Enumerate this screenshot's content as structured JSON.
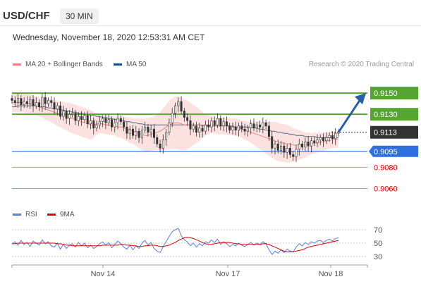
{
  "header": {
    "symbol": "USD/CHF",
    "interval": "30 MIN"
  },
  "datetime": "Wednesday, November 18, 2020 12:53:31 AM CET",
  "legend": {
    "ma20_label": "MA 20 + Bollinger Bands",
    "ma50_label": "MA 50",
    "credit": "Research © 2020 Trading Central",
    "colors": {
      "ma20": "#f08080",
      "ma50": "#1f4e79",
      "bands": "#fbdcdc"
    }
  },
  "rsi_legend": {
    "rsi_label": "RSI",
    "ma_label": "9MA",
    "colors": {
      "rsi": "#5b7fe0",
      "ma": "#e00000"
    }
  },
  "chart_data": {
    "type": "candlestick",
    "x_ticks": [
      "Nov 14",
      "Nov 17",
      "Nov 18"
    ],
    "ylim": [
      0.9045,
      0.9168
    ],
    "levels": [
      {
        "value": "0.9150",
        "kind": "resistance",
        "color": "#55a630"
      },
      {
        "value": "0.9130",
        "kind": "resistance",
        "color": "#55a630"
      },
      {
        "value": "0.9113",
        "kind": "last-price",
        "color": "#333333"
      },
      {
        "value": "0.9095",
        "kind": "support",
        "color": "#2f6fe0"
      },
      {
        "value": "0.9080",
        "kind": "support",
        "color": "#e05050"
      },
      {
        "value": "0.9060",
        "kind": "support",
        "color": "#e05050"
      }
    ],
    "close": [
      0.9143,
      0.9141,
      0.9145,
      0.9139,
      0.9142,
      0.914,
      0.9144,
      0.9138,
      0.9141,
      0.9137,
      0.9146,
      0.914,
      0.9143,
      0.9141,
      0.9135,
      0.9138,
      0.9128,
      0.9133,
      0.9126,
      0.913,
      0.9131,
      0.9124,
      0.9128,
      0.9125,
      0.9129,
      0.9121,
      0.9124,
      0.9117,
      0.912,
      0.9123,
      0.9126,
      0.9122,
      0.9125,
      0.9118,
      0.9122,
      0.9126,
      0.9123,
      0.9118,
      0.9112,
      0.9116,
      0.911,
      0.9114,
      0.9108,
      0.9115,
      0.9118,
      0.9113,
      0.9116,
      0.9108,
      0.9102,
      0.9098,
      0.9106,
      0.9113,
      0.9122,
      0.9131,
      0.9138,
      0.9142,
      0.9133,
      0.9127,
      0.9124,
      0.9116,
      0.9119,
      0.9113,
      0.9117,
      0.9114,
      0.912,
      0.9118,
      0.9124,
      0.912,
      0.9126,
      0.9119,
      0.9123,
      0.9119,
      0.9115,
      0.9118,
      0.9115,
      0.9119,
      0.9116,
      0.9114,
      0.9117,
      0.9121,
      0.9117,
      0.912,
      0.9118,
      0.9122,
      0.9119,
      0.9109,
      0.9098,
      0.9102,
      0.9096,
      0.91,
      0.9094,
      0.9098,
      0.9092,
      0.909,
      0.9097,
      0.9102,
      0.9099,
      0.9104,
      0.91,
      0.9105,
      0.9103,
      0.9106,
      0.9108,
      0.9105,
      0.9108,
      0.911,
      0.9107,
      0.9112,
      0.9113
    ],
    "ma20": [
      0.9141,
      0.9141,
      0.9141,
      0.9141,
      0.9141,
      0.914,
      0.914,
      0.9139,
      0.9138,
      0.9137,
      0.9136,
      0.9135,
      0.9134,
      0.9133,
      0.9132,
      0.9131,
      0.913,
      0.9129,
      0.9128,
      0.9127,
      0.9126,
      0.9125,
      0.9124,
      0.9123,
      0.9122,
      0.9121,
      0.912,
      0.912,
      0.9121,
      0.9121,
      0.9121,
      0.912,
      0.912,
      0.9119,
      0.9119,
      0.9118,
      0.9118,
      0.9117,
      0.9116,
      0.9115,
      0.9114,
      0.9113,
      0.9112,
      0.9111,
      0.911,
      0.911,
      0.9111,
      0.9112,
      0.9113,
      0.9114,
      0.9116,
      0.9118,
      0.912,
      0.9121,
      0.9122,
      0.9122,
      0.9121,
      0.912,
      0.912,
      0.912,
      0.912,
      0.912,
      0.912,
      0.912,
      0.912,
      0.912,
      0.912,
      0.912,
      0.9119,
      0.9119,
      0.9119,
      0.9119,
      0.9118,
      0.9118,
      0.9118,
      0.9117,
      0.9116,
      0.9115,
      0.9114,
      0.9113,
      0.9112,
      0.9111,
      0.911,
      0.9109,
      0.9108,
      0.9107,
      0.9106,
      0.9105,
      0.9104,
      0.9103,
      0.9103,
      0.9102,
      0.9102,
      0.9101,
      0.9101,
      0.9101,
      0.9101,
      0.9101,
      0.9102,
      0.9102,
      0.9103,
      0.9103,
      0.9104,
      0.9104,
      0.9105,
      0.9105,
      0.9106,
      0.9106,
      0.9107
    ],
    "ma50": [
      0.9137,
      0.9137,
      0.9138,
      0.9138,
      0.9138,
      0.9138,
      0.9138,
      0.9138,
      0.9138,
      0.9137,
      0.9137,
      0.9137,
      0.9136,
      0.9136,
      0.9135,
      0.9135,
      0.9134,
      0.9134,
      0.9133,
      0.9133,
      0.9132,
      0.9132,
      0.9131,
      0.9131,
      0.913,
      0.913,
      0.9129,
      0.9129,
      0.9128,
      0.9128,
      0.9127,
      0.9127,
      0.9126,
      0.9126,
      0.9125,
      0.9125,
      0.9124,
      0.9124,
      0.9123,
      0.9123,
      0.9122,
      0.9122,
      0.9121,
      0.9121,
      0.912,
      0.912,
      0.912,
      0.912,
      0.912,
      0.912,
      0.912,
      0.912,
      0.912,
      0.912,
      0.912,
      0.912,
      0.912,
      0.912,
      0.912,
      0.912,
      0.912,
      0.912,
      0.912,
      0.9119,
      0.9119,
      0.9119,
      0.9119,
      0.9119,
      0.9119,
      0.9119,
      0.9119,
      0.9119,
      0.9119,
      0.9119,
      0.9118,
      0.9118,
      0.9118,
      0.9118,
      0.9118,
      0.9118,
      0.9117,
      0.9117,
      0.9116,
      0.9116,
      0.9115,
      0.9115,
      0.9114,
      0.9114,
      0.9113,
      0.9113,
      0.9112,
      0.9112,
      0.9111,
      0.9111,
      0.911,
      0.911,
      0.911,
      0.9109,
      0.9109,
      0.9109,
      0.9109,
      0.9108,
      0.9108,
      0.9108,
      0.9108,
      0.9108,
      0.9108,
      0.9108,
      0.9108
    ],
    "band_width": [
      0.0009,
      0.0009,
      0.0009,
      0.0009,
      0.0009,
      0.0009,
      0.0009,
      0.0009,
      0.0009,
      0.0009,
      0.0009,
      0.001,
      0.001,
      0.0011,
      0.0011,
      0.0012,
      0.0012,
      0.0013,
      0.0013,
      0.0014,
      0.0014,
      0.0014,
      0.0014,
      0.0014,
      0.0014,
      0.0014,
      0.0014,
      0.0012,
      0.001,
      0.0009,
      0.0009,
      0.0009,
      0.0009,
      0.0009,
      0.0009,
      0.001,
      0.001,
      0.0011,
      0.0011,
      0.0012,
      0.0012,
      0.0013,
      0.0014,
      0.0015,
      0.0016,
      0.0016,
      0.0016,
      0.0016,
      0.0017,
      0.0018,
      0.002,
      0.0021,
      0.0023,
      0.0024,
      0.0025,
      0.0025,
      0.0025,
      0.0024,
      0.0023,
      0.0021,
      0.0019,
      0.0017,
      0.0015,
      0.0012,
      0.001,
      0.0009,
      0.0008,
      0.0008,
      0.0008,
      0.0008,
      0.0008,
      0.0008,
      0.0008,
      0.0008,
      0.0008,
      0.0008,
      0.0008,
      0.0009,
      0.0009,
      0.001,
      0.0011,
      0.0012,
      0.0013,
      0.0014,
      0.0015,
      0.0016,
      0.0017,
      0.0018,
      0.0018,
      0.0018,
      0.0018,
      0.0018,
      0.0017,
      0.0016,
      0.0015,
      0.0014,
      0.0013,
      0.0012,
      0.0011,
      0.001,
      0.001,
      0.0009,
      0.0009,
      0.0009,
      0.0008,
      0.0008,
      0.0008,
      0.0008,
      0.0008
    ],
    "rsi": {
      "ticks": [
        "70",
        "50",
        "30"
      ],
      "ylim": [
        20,
        80
      ],
      "rsi": [
        49,
        52,
        47,
        54,
        48,
        51,
        45,
        53,
        50,
        47,
        55,
        49,
        52,
        46,
        44,
        50,
        41,
        48,
        42,
        47,
        49,
        44,
        51,
        46,
        50,
        43,
        47,
        42,
        45,
        49,
        52,
        47,
        51,
        43,
        48,
        53,
        49,
        44,
        41,
        47,
        40,
        46,
        42,
        50,
        54,
        47,
        51,
        42,
        38,
        36,
        45,
        52,
        60,
        67,
        70,
        72,
        61,
        55,
        52,
        46,
        50,
        44,
        49,
        46,
        52,
        50,
        55,
        51,
        56,
        48,
        52,
        49,
        45,
        48,
        46,
        50,
        47,
        45,
        48,
        51,
        47,
        50,
        48,
        52,
        49,
        40,
        33,
        38,
        35,
        40,
        36,
        41,
        38,
        37,
        44,
        49,
        46,
        51,
        48,
        52,
        50,
        53,
        54,
        51,
        54,
        56,
        53,
        57,
        58
      ],
      "ma": [
        49,
        49,
        50,
        50,
        50,
        50,
        50,
        50,
        50,
        50,
        50,
        50,
        50,
        50,
        50,
        49,
        49,
        48,
        47,
        47,
        46,
        46,
        46,
        46,
        46,
        46,
        46,
        46,
        46,
        46,
        47,
        47,
        47,
        47,
        47,
        47,
        48,
        48,
        47,
        47,
        46,
        46,
        45,
        45,
        46,
        46,
        47,
        47,
        46,
        45,
        45,
        46,
        47,
        49,
        51,
        54,
        56,
        58,
        59,
        58,
        57,
        55,
        53,
        51,
        49,
        48,
        48,
        49,
        50,
        51,
        51,
        51,
        51,
        50,
        49,
        49,
        48,
        48,
        48,
        48,
        48,
        48,
        48,
        49,
        49,
        48,
        46,
        44,
        42,
        40,
        38,
        37,
        37,
        37,
        38,
        39,
        40,
        42,
        44,
        45,
        46,
        47,
        48,
        49,
        50,
        51,
        52,
        53,
        54
      ]
    }
  }
}
